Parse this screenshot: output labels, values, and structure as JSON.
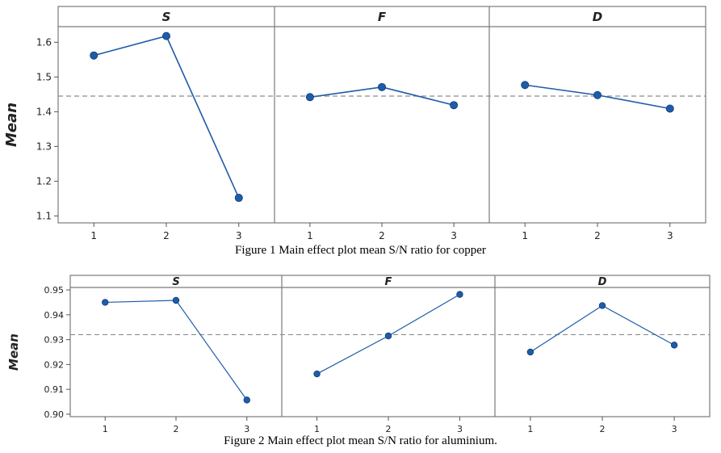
{
  "chart_data": [
    {
      "type": "line",
      "ylabel": "Mean",
      "caption": "Figure 1 Main effect plot mean S/N ratio for copper",
      "ylim": [
        1.08,
        1.645
      ],
      "yticks": [
        "1.1",
        "1.2",
        "1.3",
        "1.4",
        "1.5",
        "1.6"
      ],
      "reference_line": 1.445,
      "categories": [
        "1",
        "2",
        "3"
      ],
      "panels": [
        {
          "name": "S",
          "values": [
            1.562,
            1.618,
            1.152
          ]
        },
        {
          "name": "F",
          "values": [
            1.442,
            1.471,
            1.419
          ]
        },
        {
          "name": "D",
          "values": [
            1.477,
            1.448,
            1.409
          ]
        }
      ]
    },
    {
      "type": "line",
      "ylabel": "Mean",
      "caption": "Figure 2 Main effect plot mean S/N ratio for aluminium.",
      "ylim": [
        0.899,
        0.951
      ],
      "yticks": [
        "0.90",
        "0.91",
        "0.92",
        "0.93",
        "0.94",
        "0.95"
      ],
      "reference_line": 0.932,
      "categories": [
        "1",
        "2",
        "3"
      ],
      "panels": [
        {
          "name": "S",
          "values": [
            0.945,
            0.9458,
            0.9057
          ]
        },
        {
          "name": "F",
          "values": [
            0.9162,
            0.9315,
            0.9482
          ]
        },
        {
          "name": "D",
          "values": [
            0.925,
            0.9437,
            0.9278
          ]
        }
      ]
    }
  ],
  "colors": {
    "line": "#1f5ca8",
    "marker": "#1f5ca8",
    "reference": "#8c8c8c",
    "frame": "#7a7a7a"
  }
}
